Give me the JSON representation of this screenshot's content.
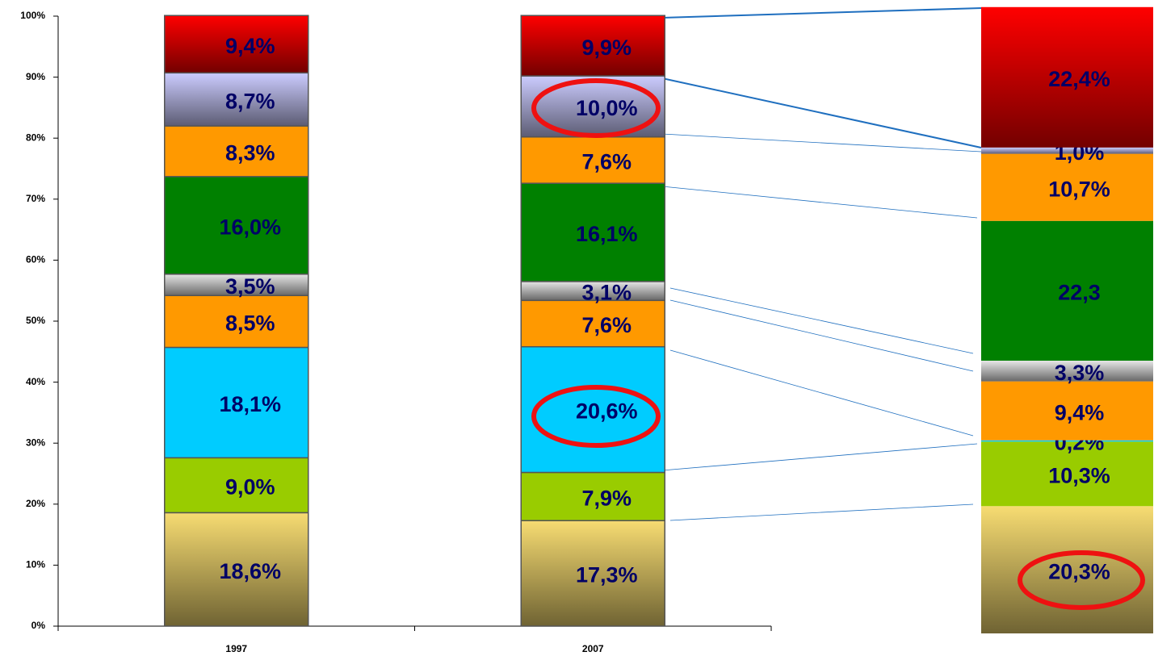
{
  "chart_data": [
    {
      "type": "stacked_bar",
      "categories": [
        "1997",
        "2007"
      ],
      "series": [
        {
          "color": "#f7dc72",
          "gradient": true,
          "values": [
            18.6,
            17.3
          ],
          "value_labels": [
            "18,6%",
            "17,3%"
          ]
        },
        {
          "color": "#99cc00",
          "gradient": false,
          "values": [
            9.0,
            7.9
          ],
          "value_labels": [
            "9,0%",
            "7,9%"
          ]
        },
        {
          "color": "#00ccff",
          "gradient": false,
          "values": [
            18.1,
            20.6
          ],
          "value_labels": [
            "18,1%",
            "20,6%"
          ]
        },
        {
          "color": "#ff9900",
          "gradient": false,
          "values": [
            8.5,
            7.6
          ],
          "value_labels": [
            "8,5%",
            "7,6%"
          ]
        },
        {
          "color": "#e6e6e6",
          "gradient": true,
          "values": [
            3.5,
            3.1
          ],
          "value_labels": [
            "3,5%",
            "3,1%"
          ]
        },
        {
          "color": "#008000",
          "gradient": false,
          "values": [
            16.0,
            16.1
          ],
          "value_labels": [
            "16,0%",
            "16,1%"
          ]
        },
        {
          "color": "#ff9900",
          "gradient": false,
          "values": [
            8.3,
            7.6
          ],
          "value_labels": [
            "8,3%",
            "7,6%"
          ]
        },
        {
          "color": "#ccccff",
          "gradient": true,
          "values": [
            8.7,
            10.0
          ],
          "value_labels": [
            "8,7%",
            "10,0%"
          ]
        },
        {
          "color": "#ff0000",
          "gradient": true,
          "values": [
            9.4,
            9.9
          ],
          "value_labels": [
            "9,4%",
            "9,9%"
          ]
        }
      ],
      "ylim": [
        0,
        100
      ],
      "yticks": [
        {
          "value": 0,
          "label": "0%"
        },
        {
          "value": 10,
          "label": "10%"
        },
        {
          "value": 20,
          "label": "20%"
        },
        {
          "value": 30,
          "label": "30%"
        },
        {
          "value": 40,
          "label": "40%"
        },
        {
          "value": 50,
          "label": "50%"
        },
        {
          "value": 60,
          "label": "60%"
        },
        {
          "value": 70,
          "label": "70%"
        },
        {
          "value": 80,
          "label": "80%"
        },
        {
          "value": 90,
          "label": "90%"
        },
        {
          "value": 100,
          "label": "100%"
        }
      ]
    },
    {
      "type": "stacked_bar",
      "values": [
        20.3,
        10.3,
        0.2,
        9.4,
        3.3,
        22.3,
        10.7,
        1.0,
        22.4
      ],
      "value_labels": [
        "20,3%",
        "10,3%",
        "0,2%",
        "9,4%",
        "3,3%",
        "22,3",
        "10,7%",
        "1,0%",
        "22,4%"
      ]
    }
  ]
}
